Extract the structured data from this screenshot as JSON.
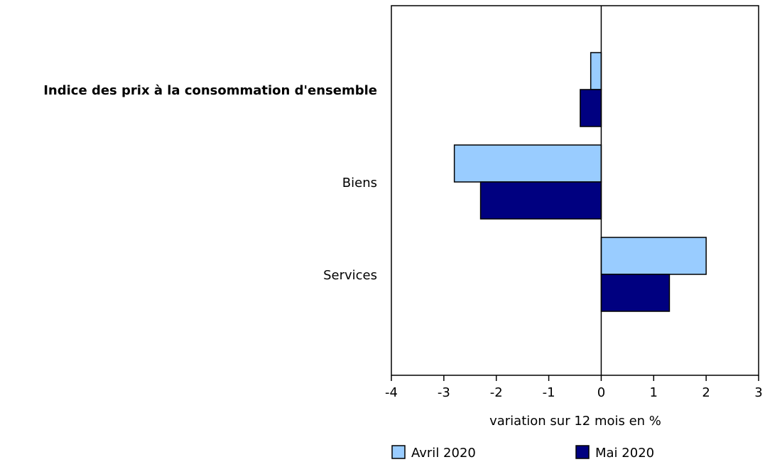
{
  "chart_data": {
    "type": "bar",
    "orientation": "horizontal",
    "categories": [
      "Indice des prix à la consommation d'ensemble",
      "Biens",
      "Services"
    ],
    "category_bold": [
      true,
      false,
      false
    ],
    "series": [
      {
        "name": "Avril 2020",
        "color": "#99ccff",
        "values": [
          -0.2,
          -2.8,
          2.0
        ]
      },
      {
        "name": "Mai 2020",
        "color": "#000080",
        "values": [
          -0.4,
          -2.3,
          1.3
        ]
      }
    ],
    "title": "",
    "xlabel": "variation sur 12 mois en %",
    "ylabel": "",
    "xlim": [
      -4,
      3
    ],
    "xticks": [
      -4,
      -3,
      -2,
      -1,
      0,
      1,
      2,
      3
    ],
    "grid": false,
    "legend_position": "bottom"
  }
}
